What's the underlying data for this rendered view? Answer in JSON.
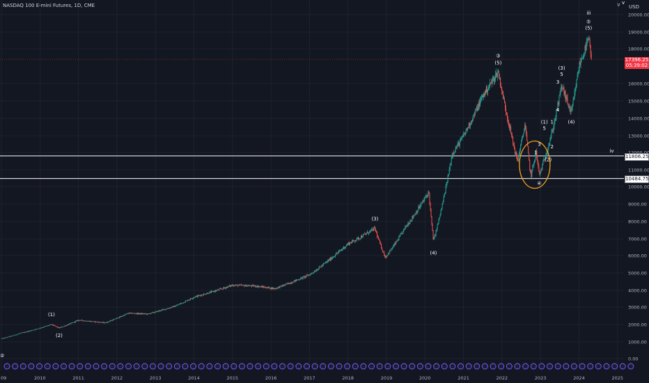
{
  "header": {
    "title": "NASDAQ 100 E-mini Futures, 1D, CME",
    "currency": "USD",
    "settings_icon": "chevron-down-icon"
  },
  "price_tags": {
    "last_price": "17396.25",
    "countdown": "05:39:02",
    "level_high": "11806.25",
    "level_low": "10484.75"
  },
  "colors": {
    "background": "#131722",
    "up": "#26a69a",
    "down": "#ef5350",
    "grid": "#1e222d",
    "level_line": "#ffffff",
    "last_price": "#f23645",
    "ellipse": "#f7a21b",
    "event_marker": "#7b61ff"
  },
  "chart_data": {
    "type": "candlestick",
    "title": "NASDAQ 100 E-mini Futures, 1D, CME",
    "ylabel": "USD",
    "scale": "log",
    "grid": true,
    "ylim": [
      0,
      20000
    ],
    "y_ticks": [
      "20000.00",
      "19000.00",
      "18000.00",
      "16000.00",
      "15000.00",
      "14000.00",
      "13000.00",
      "12000.00",
      "11000.00",
      "10000.00",
      "9000.00",
      "8000.00",
      "7000.00",
      "6000.00",
      "5000.00",
      "4000.00",
      "3000.00",
      "2000.00",
      "1000.00",
      "0.00"
    ],
    "x_ticks": [
      "09",
      "2010",
      "2011",
      "2012",
      "2013",
      "2014",
      "2015",
      "2016",
      "2017",
      "2018",
      "2019",
      "2020",
      "2021",
      "2022",
      "2023",
      "2024",
      "2025"
    ],
    "price_path": [
      {
        "t": 2009.0,
        "p": 1180
      },
      {
        "t": 2009.5,
        "p": 1500
      },
      {
        "t": 2010.3,
        "p": 2000
      },
      {
        "t": 2010.5,
        "p": 1800
      },
      {
        "t": 2011.0,
        "p": 2250
      },
      {
        "t": 2011.7,
        "p": 2100
      },
      {
        "t": 2012.3,
        "p": 2650
      },
      {
        "t": 2012.8,
        "p": 2600
      },
      {
        "t": 2013.5,
        "p": 3050
      },
      {
        "t": 2014.0,
        "p": 3600
      },
      {
        "t": 2015.0,
        "p": 4300
      },
      {
        "t": 2015.6,
        "p": 4250
      },
      {
        "t": 2016.1,
        "p": 4100
      },
      {
        "t": 2017.0,
        "p": 4900
      },
      {
        "t": 2018.0,
        "p": 6700
      },
      {
        "t": 2018.7,
        "p": 7600
      },
      {
        "t": 2018.97,
        "p": 5900
      },
      {
        "t": 2019.5,
        "p": 7700
      },
      {
        "t": 2020.1,
        "p": 9700
      },
      {
        "t": 2020.22,
        "p": 6900
      },
      {
        "t": 2020.7,
        "p": 11900
      },
      {
        "t": 2021.0,
        "p": 13000
      },
      {
        "t": 2021.5,
        "p": 15300
      },
      {
        "t": 2021.9,
        "p": 16700
      },
      {
        "t": 2022.2,
        "p": 13500
      },
      {
        "t": 2022.4,
        "p": 11500
      },
      {
        "t": 2022.6,
        "p": 13700
      },
      {
        "t": 2022.75,
        "p": 10600
      },
      {
        "t": 2022.88,
        "p": 12100
      },
      {
        "t": 2022.97,
        "p": 10700
      },
      {
        "t": 2023.3,
        "p": 13200
      },
      {
        "t": 2023.55,
        "p": 15900
      },
      {
        "t": 2023.8,
        "p": 14300
      },
      {
        "t": 2024.0,
        "p": 17000
      },
      {
        "t": 2024.25,
        "p": 18600
      },
      {
        "t": 2024.32,
        "p": 17396.25
      }
    ],
    "horizontal_levels": [
      11806.25,
      10484.75
    ],
    "last_price": 17396.25,
    "wave_labels": [
      {
        "text": "②",
        "t": 2009.02,
        "p": 80
      },
      {
        "text": "(1)",
        "t": 2010.3,
        "p": 2480
      },
      {
        "text": "(2)",
        "t": 2010.5,
        "p": 1280
      },
      {
        "text": "(3)",
        "t": 2018.7,
        "p": 8060
      },
      {
        "text": "(4)",
        "t": 2020.22,
        "p": 6060
      },
      {
        "text": "③",
        "t": 2021.9,
        "p": 17500
      },
      {
        "text": "(5)",
        "t": 2021.9,
        "p": 17100
      },
      {
        "text": "④",
        "t": 2022.97,
        "p": 10100
      },
      {
        "text": "1",
        "t": 2022.88,
        "p": 11900
      },
      {
        "text": "3",
        "t": 2022.97,
        "p": 12400
      },
      {
        "text": "2",
        "t": 2023.3,
        "p": 12250
      },
      {
        "text": "(2)",
        "t": 2023.2,
        "p": 11500
      },
      {
        "text": "(1)",
        "t": 2023.1,
        "p": 13700
      },
      {
        "text": "5",
        "t": 2023.1,
        "p": 13350
      },
      {
        "text": "1",
        "t": 2023.3,
        "p": 13700
      },
      {
        "text": "4",
        "t": 2023.45,
        "p": 14400
      },
      {
        "text": "3",
        "t": 2023.45,
        "p": 16000
      },
      {
        "text": "(3)",
        "t": 2023.55,
        "p": 16800
      },
      {
        "text": "5",
        "t": 2023.55,
        "p": 16450
      },
      {
        "text": "(4)",
        "t": 2023.8,
        "p": 13700
      },
      {
        "text": "iii",
        "t": 2024.25,
        "p": 20000
      },
      {
        "text": "⑤",
        "t": 2024.25,
        "p": 19500
      },
      {
        "text": "(5)",
        "t": 2024.25,
        "p": 19150
      },
      {
        "text": "iv",
        "t": 2024.85,
        "p": 12000
      },
      {
        "text": "v",
        "t": 2025.15,
        "p": 20600
      }
    ],
    "event_markers": {
      "count": 78,
      "t_start": 2009.0,
      "t_end": 2025.2
    }
  }
}
